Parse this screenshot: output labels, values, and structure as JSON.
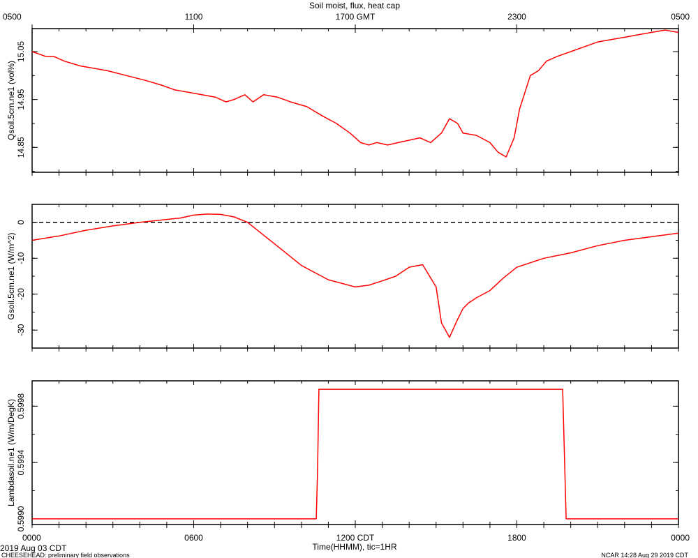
{
  "title": "Soil moist, flux, heat cap",
  "top_axis": {
    "ticks": [
      {
        "t": 0,
        "label": "0500"
      },
      {
        "t": 6,
        "label": "1100"
      },
      {
        "t": 12,
        "label": "1700 GMT"
      },
      {
        "t": 18,
        "label": "2300"
      },
      {
        "t": 24,
        "label": "0500"
      }
    ]
  },
  "bottom_axis": {
    "ticks": [
      {
        "t": 0,
        "label": "0000"
      },
      {
        "t": 6,
        "label": "0600"
      },
      {
        "t": 12,
        "label": "1200 CDT"
      },
      {
        "t": 18,
        "label": "1800"
      },
      {
        "t": 24,
        "label": "0000"
      }
    ],
    "xlabel": "Time(HHMM), tic=1HR"
  },
  "footer": {
    "date": "2019 Aug 03 CDT",
    "project": "CHEESEHEAD: preliminary field observations",
    "credit": "NCAR 14:28 Aug 29 2019 CDT"
  },
  "colors": {
    "series": "#ff0000",
    "axis": "#000000",
    "zero_line": "#000000"
  },
  "chart_data": [
    {
      "type": "line",
      "ylabel": "Qsoil.5cm.ne1 (vol%)",
      "xlim": [
        0,
        24
      ],
      "ylim": [
        14.798,
        15.098
      ],
      "yticks": [
        {
          "v": 14.85,
          "label": "14.85"
        },
        {
          "v": 14.95,
          "label": "14.95"
        },
        {
          "v": 15.05,
          "label": "15.05"
        }
      ],
      "series": [
        {
          "x": [
            0,
            0.5,
            0.8,
            1.2,
            1.8,
            2.8,
            3.5,
            4.2,
            4.8,
            5.3,
            5.8,
            6.3,
            6.8,
            7.2,
            7.5,
            7.9,
            8.2,
            8.6,
            9.1,
            9.6,
            10.2,
            10.8,
            11.3,
            11.8,
            12.2,
            12.5,
            12.8,
            13.2,
            13.6,
            14.0,
            14.4,
            14.8,
            15.2,
            15.5,
            15.8,
            16.0,
            16.5,
            17.0,
            17.3,
            17.6,
            17.9,
            18.1,
            18.5,
            18.8,
            19.1,
            19.5,
            20.0,
            20.5,
            21.0,
            21.5,
            22.0,
            22.5,
            23.0,
            23.5,
            24.0
          ],
          "y": [
            15.05,
            15.04,
            15.04,
            15.03,
            15.02,
            15.01,
            15.0,
            14.99,
            14.98,
            14.97,
            14.965,
            14.96,
            14.955,
            14.945,
            14.95,
            14.96,
            14.945,
            14.96,
            14.955,
            14.945,
            14.935,
            14.915,
            14.9,
            14.88,
            14.86,
            14.855,
            14.86,
            14.855,
            14.86,
            14.865,
            14.87,
            14.86,
            14.88,
            14.91,
            14.9,
            14.88,
            14.875,
            14.86,
            14.84,
            14.83,
            14.87,
            14.93,
            15.0,
            15.01,
            15.03,
            15.04,
            15.05,
            15.06,
            15.07,
            15.075,
            15.08,
            15.085,
            15.09,
            15.095,
            15.09
          ]
        }
      ]
    },
    {
      "type": "line",
      "ylabel": "Gsoil.5cm.ne1 (W/m^2)",
      "xlim": [
        0,
        24
      ],
      "ylim": [
        -35,
        5
      ],
      "yticks": [
        {
          "v": 0,
          "label": "0"
        },
        {
          "v": -10,
          "label": "-10"
        },
        {
          "v": -20,
          "label": "-20"
        },
        {
          "v": -30,
          "label": "-30"
        }
      ],
      "zero_line": true,
      "series": [
        {
          "x": [
            0,
            1,
            2,
            3,
            4,
            5,
            5.5,
            6,
            6.5,
            7,
            7.5,
            8,
            8.5,
            9,
            10,
            11,
            12,
            12.5,
            13,
            13.5,
            14,
            14.5,
            15,
            15.2,
            15.5,
            15.8,
            16.0,
            16.2,
            16.5,
            17,
            17.5,
            18,
            19,
            20,
            21,
            22,
            23,
            24
          ],
          "y": [
            -5,
            -3.8,
            -2.2,
            -1,
            0,
            0.8,
            1.2,
            2,
            2.3,
            2.2,
            1.5,
            0,
            -3,
            -6,
            -12,
            -16,
            -18,
            -17.5,
            -16.3,
            -15,
            -12.5,
            -11.8,
            -18,
            -28,
            -32,
            -27,
            -24,
            -22.5,
            -21,
            -19,
            -15.5,
            -12.5,
            -10,
            -8.5,
            -6.5,
            -5,
            -4,
            -3
          ]
        }
      ]
    },
    {
      "type": "line",
      "ylabel": "Lambdasoil.ne1 (W/m/DegK)",
      "xlim": [
        0,
        24
      ],
      "ylim": [
        0.59896,
        0.59998
      ],
      "yticks": [
        {
          "v": 0.599,
          "label": "0.5990"
        },
        {
          "v": 0.5994,
          "label": "0.5994"
        },
        {
          "v": 0.5998,
          "label": "0.5998"
        }
      ],
      "series": [
        {
          "x": [
            0,
            10.55,
            10.6,
            10.65,
            19.7,
            19.78,
            19.83,
            24
          ],
          "y": [
            0.599,
            0.599,
            0.59935,
            0.59992,
            0.59992,
            0.59935,
            0.599,
            0.599
          ]
        }
      ]
    }
  ]
}
